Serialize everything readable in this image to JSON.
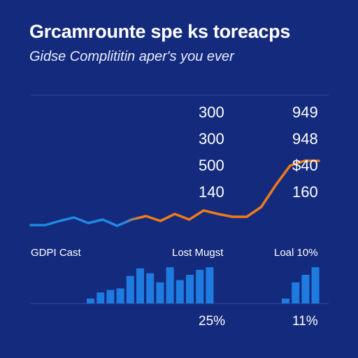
{
  "title": "Grcamrounte spe ks toreacps",
  "subtitle": "Gidse Complititin aper's you ever",
  "colors": {
    "background": "#142a7c",
    "line_start": "#1e88e5",
    "line_end": "#f07a1a",
    "bars": "#1e7be0",
    "text": "#ffffff",
    "gridline": "#34489a"
  },
  "chart_data": [
    {
      "type": "line",
      "title": "",
      "xlabel": "",
      "ylabel": "",
      "grid": true,
      "legend": "none",
      "x": [
        0,
        1,
        2,
        3,
        4,
        5,
        6,
        7,
        8,
        9,
        10,
        11,
        12,
        13,
        14,
        15,
        16,
        17,
        18,
        19,
        20
      ],
      "series": [
        {
          "values": [
            22,
            22,
            28,
            33,
            25,
            30,
            21,
            30,
            35,
            28,
            38,
            30,
            43,
            38,
            34,
            34,
            48,
            79,
            107,
            114,
            114
          ]
        }
      ],
      "ylim": [
        0,
        180
      ],
      "mid_labels": [
        "300",
        "300",
        "500",
        "140"
      ],
      "right_labels": [
        "949",
        "948",
        "$40",
        "160"
      ]
    },
    {
      "type": "bar",
      "title": "",
      "groups": [
        {
          "label": "GDPI Cast",
          "values": []
        },
        {
          "label": "Lost Mugst",
          "values": [
            0.13,
            0.29,
            0.36,
            0.4,
            0.73,
            0.93,
            0.8,
            0.56,
            0.96,
            0.62,
            0.76,
            0.89,
            0.96
          ],
          "percent": "25%"
        },
        {
          "label": "Loal 10%",
          "values": [
            0.13,
            0.56,
            0.76,
            0.96
          ],
          "percent": "11%"
        }
      ]
    }
  ]
}
